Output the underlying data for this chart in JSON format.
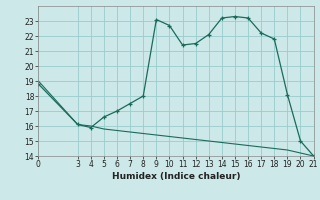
{
  "xlabel": "Humidex (Indice chaleur)",
  "bg_color": "#cce8e8",
  "grid_color": "#99cccc",
  "line_color": "#1a6b5a",
  "curve1_x": [
    0,
    3,
    4,
    5,
    6,
    7,
    8,
    9,
    10,
    11,
    12,
    13,
    14,
    15,
    16,
    17,
    18,
    19,
    20,
    21
  ],
  "curve1_y": [
    18.8,
    16.1,
    15.9,
    16.6,
    17.0,
    17.5,
    18.0,
    23.1,
    22.7,
    21.4,
    21.5,
    22.1,
    23.2,
    23.3,
    23.2,
    22.2,
    21.8,
    18.1,
    15.0,
    14.0
  ],
  "curve2_x": [
    0,
    3,
    4,
    5,
    6,
    7,
    8,
    9,
    10,
    11,
    12,
    13,
    14,
    15,
    16,
    17,
    18,
    19,
    20,
    21
  ],
  "curve2_y": [
    19.0,
    16.1,
    16.0,
    15.8,
    15.7,
    15.6,
    15.5,
    15.4,
    15.3,
    15.2,
    15.1,
    15.0,
    14.9,
    14.8,
    14.7,
    14.6,
    14.5,
    14.4,
    14.2,
    14.0
  ],
  "xlim": [
    0,
    21
  ],
  "ylim": [
    14,
    24
  ],
  "xticks": [
    0,
    3,
    4,
    5,
    6,
    7,
    8,
    9,
    10,
    11,
    12,
    13,
    14,
    15,
    16,
    17,
    18,
    19,
    20,
    21
  ],
  "yticks": [
    14,
    15,
    16,
    17,
    18,
    19,
    20,
    21,
    22,
    23
  ],
  "tick_fontsize": 5.5,
  "xlabel_fontsize": 6.5
}
